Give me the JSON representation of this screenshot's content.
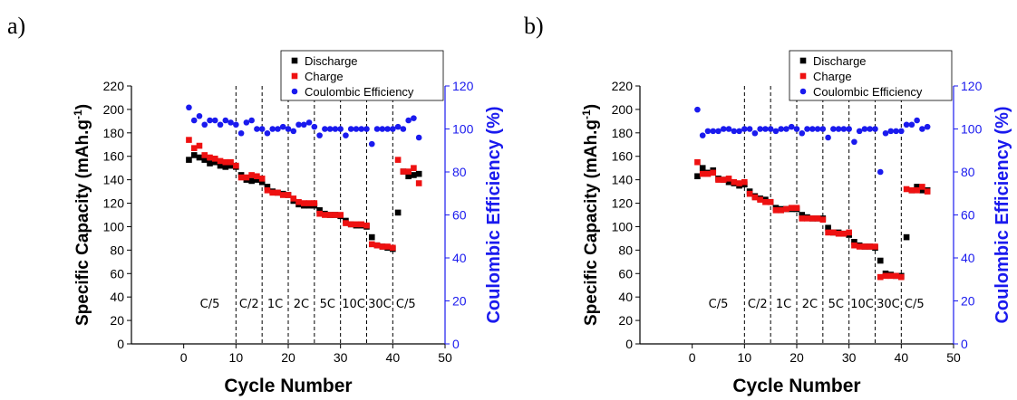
{
  "panel_labels": [
    "a)",
    "b)"
  ],
  "chart_data": [
    {
      "type": "scatter",
      "panel": "a)",
      "xlabel": "Cycle Number",
      "ylabel": "Specific Capacity (mAh.g-1)",
      "ylabel_main": "Specific Capacity (mAh.g",
      "ylabel_sup": "-1",
      "ylabel_close": ")",
      "y2label": "Coulombic Efficiency (%)",
      "xlim": [
        -10,
        50
      ],
      "ylim": [
        0,
        220
      ],
      "y2lim": [
        0,
        120
      ],
      "xticks": [
        "0",
        "10",
        "20",
        "30",
        "40",
        "50"
      ],
      "yticks": [
        "0",
        "20",
        "40",
        "60",
        "80",
        "100",
        "120",
        "140",
        "160",
        "180",
        "200",
        "220"
      ],
      "y2ticks": [
        "0",
        "20",
        "40",
        "60",
        "80",
        "100",
        "120"
      ],
      "legend": {
        "position": "top-right",
        "entries": [
          "Discharge",
          "Charge",
          "Coulombic Efficiency"
        ]
      },
      "colors": {
        "discharge": "#000000",
        "charge": "#ee1111",
        "efficiency": "#1a1aee",
        "axis2": "#1a1aee"
      },
      "rate_dividers": [
        10,
        15,
        20,
        25,
        30,
        35,
        40
      ],
      "rate_labels": [
        "C/5",
        "C/2",
        "1C",
        "2C",
        "5C",
        "10C",
        "30C",
        "C/5"
      ],
      "rate_label_x": [
        5,
        12.5,
        17.5,
        22.5,
        27.5,
        32.5,
        37.5,
        42.5
      ],
      "series": [
        {
          "name": "Discharge",
          "x": [
            1,
            2,
            3,
            4,
            5,
            6,
            7,
            8,
            9,
            10,
            11,
            12,
            13,
            14,
            15,
            16,
            17,
            18,
            19,
            20,
            21,
            22,
            23,
            24,
            25,
            26,
            27,
            28,
            29,
            30,
            31,
            32,
            33,
            34,
            35,
            36,
            37,
            38,
            39,
            40,
            41,
            42,
            43,
            44,
            45
          ],
          "y": [
            157,
            161,
            159,
            157,
            154,
            155,
            152,
            151,
            152,
            151,
            144,
            140,
            139,
            140,
            138,
            134,
            130,
            129,
            128,
            127,
            122,
            119,
            118,
            118,
            118,
            114,
            111,
            110,
            110,
            109,
            105,
            102,
            101,
            101,
            100,
            91,
            84,
            83,
            82,
            81,
            112,
            147,
            143,
            144,
            145
          ]
        },
        {
          "name": "Charge",
          "x": [
            1,
            2,
            3,
            4,
            5,
            6,
            7,
            8,
            9,
            10,
            11,
            12,
            13,
            14,
            15,
            16,
            17,
            18,
            19,
            20,
            21,
            22,
            23,
            24,
            25,
            26,
            27,
            28,
            29,
            30,
            31,
            32,
            33,
            34,
            35,
            36,
            37,
            38,
            39,
            40,
            41,
            42,
            43,
            44,
            45
          ],
          "y": [
            174,
            167,
            169,
            161,
            159,
            158,
            156,
            155,
            155,
            152,
            142,
            142,
            144,
            143,
            141,
            131,
            129,
            129,
            127,
            127,
            124,
            121,
            120,
            120,
            120,
            111,
            110,
            110,
            110,
            110,
            103,
            102,
            102,
            102,
            101,
            85,
            84,
            83,
            83,
            82,
            157,
            147,
            147,
            150,
            137
          ]
        },
        {
          "name": "Coulombic Efficiency",
          "x": [
            1,
            2,
            3,
            4,
            5,
            6,
            7,
            8,
            9,
            10,
            11,
            12,
            13,
            14,
            15,
            16,
            17,
            18,
            19,
            20,
            21,
            22,
            23,
            24,
            25,
            26,
            27,
            28,
            29,
            30,
            31,
            32,
            33,
            34,
            35,
            36,
            37,
            38,
            39,
            40,
            41,
            42,
            43,
            44,
            45
          ],
          "y": [
            110,
            104,
            106,
            102,
            104,
            104,
            102,
            104,
            103,
            102,
            98,
            103,
            104,
            100,
            100,
            98,
            100,
            100,
            101,
            100,
            99,
            102,
            102,
            103,
            101,
            97,
            100,
            100,
            100,
            100,
            97,
            100,
            100,
            100,
            100,
            93,
            100,
            100,
            100,
            100,
            101,
            100,
            104,
            105,
            96
          ]
        }
      ]
    },
    {
      "type": "scatter",
      "panel": "b)",
      "xlabel": "Cycle Number",
      "ylabel": "Specific Capacity (mAh.g-1)",
      "ylabel_main": "Specific Capacity (mAh.g",
      "ylabel_sup": "-1",
      "ylabel_close": ")",
      "y2label": "Coulombic Efficiency (%)",
      "xlim": [
        -10,
        50
      ],
      "ylim": [
        0,
        220
      ],
      "y2lim": [
        0,
        120
      ],
      "xticks": [
        "0",
        "10",
        "20",
        "30",
        "40",
        "50"
      ],
      "yticks": [
        "0",
        "20",
        "40",
        "60",
        "80",
        "100",
        "120",
        "140",
        "160",
        "180",
        "200",
        "220"
      ],
      "y2ticks": [
        "0",
        "20",
        "40",
        "60",
        "80",
        "100",
        "120"
      ],
      "legend": {
        "position": "top-right",
        "entries": [
          "Discharge",
          "Charge",
          "Coulombic Efficiency"
        ]
      },
      "colors": {
        "discharge": "#000000",
        "charge": "#ee1111",
        "efficiency": "#1a1aee",
        "axis2": "#1a1aee"
      },
      "rate_dividers": [
        10,
        15,
        20,
        25,
        30,
        35,
        40
      ],
      "rate_labels": [
        "C/5",
        "C/2",
        "1C",
        "2C",
        "5C",
        "10C",
        "30C",
        "C/5"
      ],
      "rate_label_x": [
        5,
        12.5,
        17.5,
        22.5,
        27.5,
        32.5,
        37.5,
        42.5
      ],
      "series": [
        {
          "name": "Discharge",
          "x": [
            1,
            2,
            3,
            4,
            5,
            6,
            7,
            8,
            9,
            10,
            11,
            12,
            13,
            14,
            15,
            16,
            17,
            18,
            19,
            20,
            21,
            22,
            23,
            24,
            25,
            26,
            27,
            28,
            29,
            30,
            31,
            32,
            33,
            34,
            35,
            36,
            37,
            38,
            39,
            40,
            41,
            42,
            43,
            44,
            45
          ],
          "y": [
            143,
            150,
            146,
            148,
            141,
            140,
            138,
            137,
            135,
            136,
            130,
            126,
            124,
            123,
            121,
            116,
            115,
            115,
            115,
            115,
            110,
            108,
            107,
            107,
            107,
            99,
            95,
            95,
            94,
            93,
            87,
            84,
            83,
            83,
            82,
            71,
            60,
            59,
            58,
            58,
            91,
            131,
            134,
            131,
            131
          ]
        },
        {
          "name": "Charge",
          "x": [
            1,
            2,
            3,
            4,
            5,
            6,
            7,
            8,
            9,
            10,
            11,
            12,
            13,
            14,
            15,
            16,
            17,
            18,
            19,
            20,
            21,
            22,
            23,
            24,
            25,
            26,
            27,
            28,
            29,
            30,
            31,
            32,
            33,
            34,
            35,
            36,
            37,
            38,
            39,
            40,
            41,
            42,
            43,
            44,
            45
          ],
          "y": [
            155,
            145,
            145,
            146,
            140,
            140,
            141,
            138,
            137,
            138,
            128,
            125,
            123,
            121,
            121,
            114,
            114,
            115,
            116,
            116,
            107,
            107,
            107,
            107,
            106,
            95,
            95,
            94,
            94,
            95,
            84,
            83,
            83,
            83,
            83,
            57,
            58,
            58,
            58,
            57,
            132,
            131,
            131,
            134,
            130
          ]
        },
        {
          "name": "Coulombic Efficiency",
          "x": [
            1,
            2,
            3,
            4,
            5,
            6,
            7,
            8,
            9,
            10,
            11,
            12,
            13,
            14,
            15,
            16,
            17,
            18,
            19,
            20,
            21,
            22,
            23,
            24,
            25,
            26,
            27,
            28,
            29,
            30,
            31,
            32,
            33,
            34,
            35,
            36,
            37,
            38,
            39,
            40,
            41,
            42,
            43,
            44,
            45
          ],
          "y": [
            109,
            97,
            99,
            99,
            99,
            100,
            100,
            99,
            99,
            100,
            100,
            98,
            100,
            100,
            100,
            99,
            100,
            100,
            101,
            100,
            98,
            100,
            100,
            100,
            100,
            96,
            100,
            100,
            100,
            100,
            94,
            99,
            100,
            100,
            100,
            80,
            98,
            99,
            99,
            99,
            102,
            102,
            104,
            100,
            101
          ]
        }
      ]
    }
  ]
}
